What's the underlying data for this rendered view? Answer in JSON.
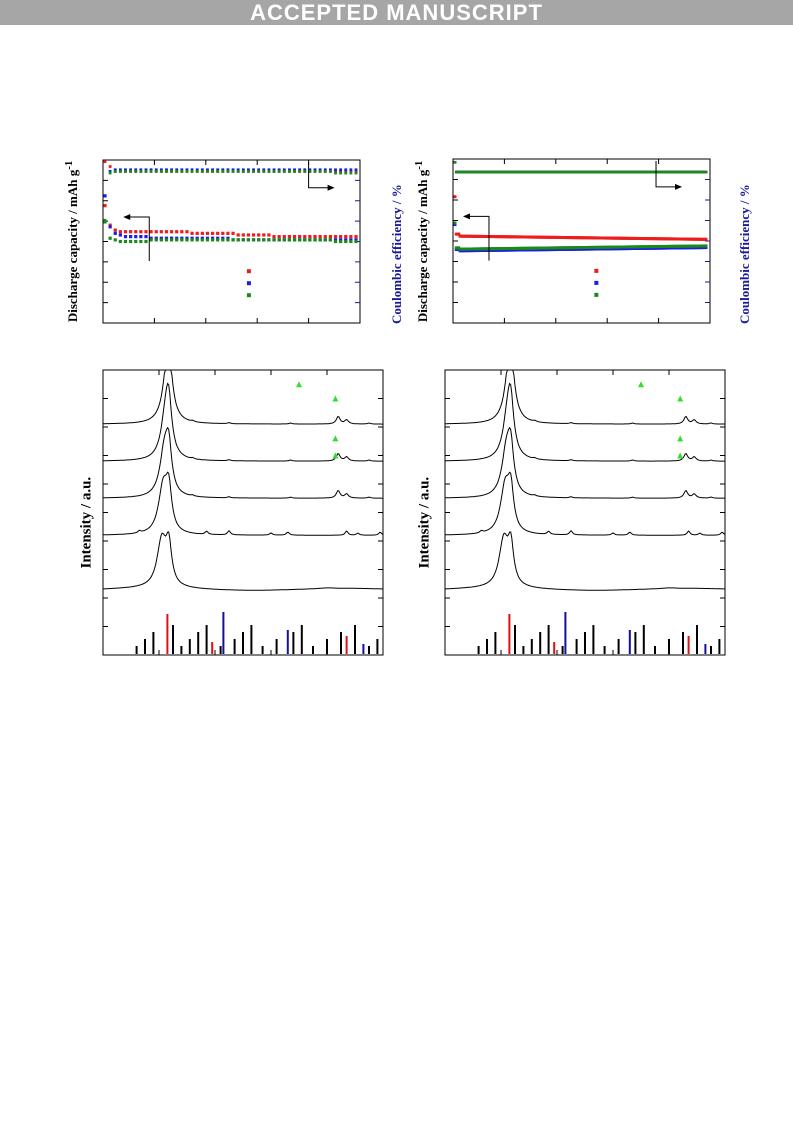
{
  "header": {
    "banner": "ACCEPTED MANUSCRIPT"
  },
  "axis_labels": {
    "left_discharge": "Discharge capacity / mAh g",
    "left_discharge_sup": "-1",
    "left_coulombic": "Coulombic efficiency / %",
    "right_discharge": "Discharge capacity / mAh g",
    "right_discharge_sup": "-1",
    "right_coulombic": "Coulombic efficiency / %",
    "left_intensity": "Intensity / a.u.",
    "right_intensity": "Intensity / a.u."
  },
  "colors": {
    "red": "#ee1c1c",
    "blue": "#1c1ce6",
    "green": "#1a8a1a",
    "marker": "#33dd33",
    "ref_red": "#e01010",
    "ref_blue": "#10109a"
  },
  "chart_data": [
    {
      "type": "scatter",
      "panel": "top-left cycling",
      "title": "",
      "xlabel": "",
      "ylabel": "Discharge capacity / mAh g-1",
      "ylabel_right": "Coulombic efficiency / %",
      "x": [
        1,
        2,
        3,
        4,
        5,
        6,
        7,
        8,
        9,
        10,
        11,
        12,
        13,
        14,
        15,
        16,
        17,
        18,
        19,
        20,
        21,
        22,
        23,
        24,
        25,
        26,
        27,
        28,
        29,
        30,
        31,
        32,
        33,
        34,
        35,
        36,
        37,
        38,
        39,
        40,
        41,
        42,
        43,
        44,
        45,
        46,
        47,
        48,
        49,
        50
      ],
      "series": [
        {
          "color": "red",
          "capacity": [
            0.72,
            0.6,
            0.57,
            0.56,
            0.56,
            0.56,
            0.56,
            0.56,
            0.56,
            0.56,
            0.56,
            0.56,
            0.56,
            0.56,
            0.56,
            0.56,
            0.56,
            0.55,
            0.55,
            0.55,
            0.55,
            0.55,
            0.55,
            0.55,
            0.55,
            0.55,
            0.54,
            0.54,
            0.54,
            0.54,
            0.54,
            0.54,
            0.54,
            0.53,
            0.53,
            0.53,
            0.53,
            0.53,
            0.53,
            0.53,
            0.53,
            0.53,
            0.53,
            0.53,
            0.53,
            0.53,
            0.53,
            0.53,
            0.53,
            0.53
          ],
          "efficiency": [
            0.99,
            0.96,
            0.93,
            0.93,
            0.93,
            0.93,
            0.93,
            0.93,
            0.93,
            0.93,
            0.93,
            0.93,
            0.93,
            0.93,
            0.93,
            0.93,
            0.93,
            0.93,
            0.93,
            0.93,
            0.93,
            0.93,
            0.93,
            0.93,
            0.93,
            0.93,
            0.93,
            0.93,
            0.93,
            0.93,
            0.93,
            0.93,
            0.93,
            0.93,
            0.93,
            0.93,
            0.93,
            0.93,
            0.93,
            0.93,
            0.93,
            0.93,
            0.93,
            0.93,
            0.93,
            0.93,
            0.93,
            0.93,
            0.93,
            0.93
          ]
        },
        {
          "color": "blue",
          "capacity": [
            0.78,
            0.59,
            0.55,
            0.54,
            0.53,
            0.53,
            0.53,
            0.53,
            0.53,
            0.52,
            0.52,
            0.52,
            0.52,
            0.52,
            0.52,
            0.52,
            0.52,
            0.52,
            0.52,
            0.52,
            0.52,
            0.52,
            0.52,
            0.52,
            0.52,
            0.51,
            0.51,
            0.51,
            0.51,
            0.51,
            0.51,
            0.51,
            0.51,
            0.51,
            0.51,
            0.51,
            0.51,
            0.51,
            0.51,
            0.51,
            0.51,
            0.51,
            0.51,
            0.51,
            0.51,
            0.51,
            0.51,
            0.51,
            0.51,
            0.51
          ],
          "efficiency": [
            0.78,
            0.93,
            0.94,
            0.94,
            0.94,
            0.94,
            0.94,
            0.94,
            0.94,
            0.94,
            0.94,
            0.94,
            0.94,
            0.94,
            0.94,
            0.94,
            0.94,
            0.94,
            0.94,
            0.94,
            0.94,
            0.94,
            0.94,
            0.94,
            0.94,
            0.94,
            0.94,
            0.94,
            0.94,
            0.94,
            0.94,
            0.94,
            0.94,
            0.94,
            0.94,
            0.94,
            0.94,
            0.94,
            0.94,
            0.94,
            0.94,
            0.94,
            0.94,
            0.94,
            0.94,
            0.94,
            0.94,
            0.94,
            0.94,
            0.94
          ]
        },
        {
          "color": "green",
          "capacity": [
            0.62,
            0.52,
            0.51,
            0.5,
            0.5,
            0.5,
            0.5,
            0.5,
            0.5,
            0.51,
            0.51,
            0.51,
            0.51,
            0.51,
            0.51,
            0.51,
            0.51,
            0.51,
            0.51,
            0.51,
            0.51,
            0.51,
            0.51,
            0.51,
            0.51,
            0.51,
            0.51,
            0.51,
            0.51,
            0.51,
            0.51,
            0.51,
            0.51,
            0.51,
            0.51,
            0.51,
            0.51,
            0.51,
            0.51,
            0.51,
            0.51,
            0.51,
            0.51,
            0.51,
            0.51,
            0.5,
            0.5,
            0.5,
            0.5,
            0.5
          ],
          "efficiency": [
            0.63,
            0.92,
            0.93,
            0.93,
            0.93,
            0.93,
            0.93,
            0.93,
            0.93,
            0.93,
            0.93,
            0.93,
            0.93,
            0.93,
            0.93,
            0.93,
            0.93,
            0.93,
            0.93,
            0.93,
            0.93,
            0.93,
            0.93,
            0.93,
            0.93,
            0.93,
            0.93,
            0.93,
            0.93,
            0.93,
            0.93,
            0.93,
            0.93,
            0.93,
            0.93,
            0.93,
            0.93,
            0.93,
            0.93,
            0.93,
            0.93,
            0.93,
            0.93,
            0.93,
            0.93,
            0.92,
            0.92,
            0.92,
            0.92,
            0.92
          ]
        }
      ]
    },
    {
      "type": "scatter",
      "panel": "top-right cycling",
      "title": "",
      "xlabel": "",
      "ylabel": "Discharge capacity / mAh g-1",
      "ylabel_right": "Coulombic efficiency / %",
      "x_range": [
        1,
        200
      ],
      "series": [
        {
          "color": "red",
          "capacity_first": 0.77,
          "capacity_plateau": 0.53,
          "capacity_end": 0.51,
          "efficiency": 0.92
        },
        {
          "color": "blue",
          "capacity_first": 0.6,
          "capacity_plateau": 0.44,
          "capacity_end": 0.46,
          "efficiency": 0.92
        },
        {
          "color": "green",
          "capacity_first": 0.61,
          "capacity_plateau": 0.45,
          "capacity_end": 0.47,
          "efficiency": 0.92
        }
      ]
    },
    {
      "type": "line",
      "panel": "bottom-left XRD",
      "title": "",
      "xlabel": "",
      "ylabel": "Intensity / a.u.",
      "patterns": 5,
      "reference_bars": {
        "red": [
          0.23,
          0.39,
          0.87
        ],
        "blue": [
          0.43,
          0.66,
          0.93
        ]
      }
    },
    {
      "type": "line",
      "panel": "bottom-right XRD",
      "title": "",
      "xlabel": "",
      "ylabel": "Intensity / a.u.",
      "patterns": 5,
      "reference_bars": {
        "red": [
          0.23,
          0.39,
          0.87
        ],
        "blue": [
          0.43,
          0.66,
          0.93
        ]
      }
    }
  ]
}
